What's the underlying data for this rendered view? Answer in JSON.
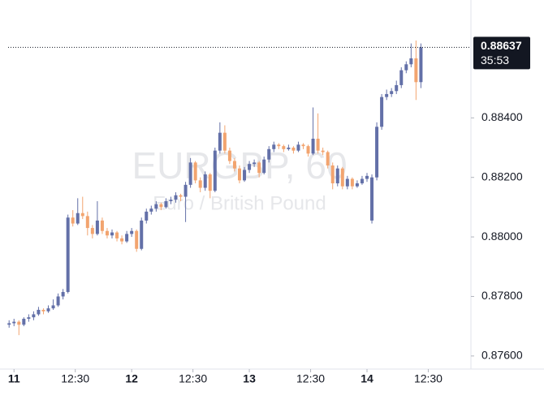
{
  "chart_data": {
    "type": "candlestick",
    "watermark": "EURGBP, 60",
    "subtitle": "Euro / British Pound",
    "up_color": "#6370a8",
    "down_color": "#f2a46f",
    "current_price": 0.88637,
    "countdown": "35:53",
    "xlim": [
      -1.2,
      93.2
    ],
    "xticks": [
      {
        "value": 0,
        "label": "11"
      },
      {
        "value": 12.5,
        "label": "12:30"
      },
      {
        "value": 24,
        "label": "12"
      },
      {
        "value": 36.5,
        "label": "12:30"
      },
      {
        "value": 48,
        "label": "13"
      },
      {
        "value": 60.5,
        "label": "12:30"
      },
      {
        "value": 72,
        "label": "14"
      },
      {
        "value": 84.5,
        "label": "12:30"
      }
    ],
    "ylim": [
      0.87556,
      0.88796
    ],
    "yticks": [
      {
        "value": 0.876,
        "label": "0.87600"
      },
      {
        "value": 0.878,
        "label": "0.87800"
      },
      {
        "value": 0.88,
        "label": "0.88000"
      },
      {
        "value": 0.882,
        "label": "0.88200"
      },
      {
        "value": 0.884,
        "label": "0.88400"
      }
    ],
    "x": [
      -1,
      0,
      1,
      2,
      3,
      4,
      5,
      6,
      7,
      8,
      9,
      10,
      11,
      12,
      13,
      14,
      15,
      16,
      17,
      18,
      19,
      20,
      21,
      22,
      23,
      24,
      25,
      26,
      27,
      28,
      29,
      30,
      31,
      32,
      33,
      34,
      35,
      36,
      37,
      38,
      39,
      40,
      41,
      42,
      43,
      44,
      45,
      46,
      47,
      48,
      49,
      50,
      51,
      52,
      53,
      54,
      55,
      56,
      57,
      58,
      59,
      60,
      61,
      62,
      63,
      64,
      65,
      66,
      67,
      68,
      69,
      70,
      71,
      72,
      73,
      74,
      75,
      76,
      77,
      78,
      79,
      80,
      81,
      82,
      83
    ],
    "ohlc": [
      [
        0.87705,
        0.8772,
        0.87695,
        0.8771
      ],
      [
        0.8771,
        0.87725,
        0.877,
        0.87715
      ],
      [
        0.87715,
        0.8772,
        0.8767,
        0.87705
      ],
      [
        0.87705,
        0.8773,
        0.877,
        0.87725
      ],
      [
        0.87725,
        0.8774,
        0.87715,
        0.8773
      ],
      [
        0.8773,
        0.8775,
        0.8772,
        0.8774
      ],
      [
        0.8774,
        0.87765,
        0.87735,
        0.87755
      ],
      [
        0.87755,
        0.8776,
        0.8774,
        0.8775
      ],
      [
        0.8775,
        0.8777,
        0.87745,
        0.8776
      ],
      [
        0.8776,
        0.8779,
        0.87755,
        0.8777
      ],
      [
        0.8777,
        0.8781,
        0.87765,
        0.878
      ],
      [
        0.878,
        0.87825,
        0.8779,
        0.87815
      ],
      [
        0.87815,
        0.88075,
        0.8781,
        0.88065
      ],
      [
        0.88065,
        0.8809,
        0.88035,
        0.88045
      ],
      [
        0.88045,
        0.8813,
        0.8804,
        0.8808
      ],
      [
        0.8808,
        0.88135,
        0.8806,
        0.8807
      ],
      [
        0.8807,
        0.88085,
        0.88005,
        0.8803
      ],
      [
        0.8803,
        0.8804,
        0.87995,
        0.8801
      ],
      [
        0.8801,
        0.8812,
        0.88005,
        0.88055
      ],
      [
        0.88055,
        0.88065,
        0.8801,
        0.8802
      ],
      [
        0.8802,
        0.8803,
        0.87995,
        0.88005
      ],
      [
        0.88005,
        0.88025,
        0.87995,
        0.88015
      ],
      [
        0.88015,
        0.8802,
        0.87985,
        0.87995
      ],
      [
        0.87995,
        0.88005,
        0.87975,
        0.87985
      ],
      [
        0.87985,
        0.8802,
        0.8798,
        0.8801
      ],
      [
        0.8801,
        0.8803,
        0.88,
        0.8802
      ],
      [
        0.8802,
        0.88025,
        0.8795,
        0.8796
      ],
      [
        0.8796,
        0.88065,
        0.87955,
        0.88055
      ],
      [
        0.88055,
        0.88095,
        0.88045,
        0.88085
      ],
      [
        0.88085,
        0.88105,
        0.88075,
        0.88095
      ],
      [
        0.88095,
        0.8812,
        0.88085,
        0.8811
      ],
      [
        0.8811,
        0.88115,
        0.8809,
        0.881
      ],
      [
        0.881,
        0.8813,
        0.88095,
        0.8812
      ],
      [
        0.8812,
        0.88135,
        0.8811,
        0.88125
      ],
      [
        0.88125,
        0.8815,
        0.88115,
        0.8814
      ],
      [
        0.8814,
        0.88145,
        0.8812,
        0.88135
      ],
      [
        0.88135,
        0.88185,
        0.8805,
        0.88175
      ],
      [
        0.88175,
        0.88265,
        0.88165,
        0.8825
      ],
      [
        0.8825,
        0.88255,
        0.8818,
        0.8819
      ],
      [
        0.8819,
        0.882,
        0.8815,
        0.88165
      ],
      [
        0.88165,
        0.8822,
        0.88155,
        0.8821
      ],
      [
        0.8821,
        0.88215,
        0.8813,
        0.88155
      ],
      [
        0.88155,
        0.883,
        0.8815,
        0.8829
      ],
      [
        0.8829,
        0.88385,
        0.8828,
        0.8835
      ],
      [
        0.8835,
        0.88375,
        0.8828,
        0.8829
      ],
      [
        0.8829,
        0.883,
        0.88245,
        0.88255
      ],
      [
        0.88255,
        0.88265,
        0.8822,
        0.8823
      ],
      [
        0.8823,
        0.8824,
        0.8818,
        0.8819
      ],
      [
        0.8819,
        0.88235,
        0.88185,
        0.88225
      ],
      [
        0.88225,
        0.88255,
        0.88215,
        0.88245
      ],
      [
        0.88245,
        0.8826,
        0.88235,
        0.8825
      ],
      [
        0.8825,
        0.88255,
        0.882,
        0.88215
      ],
      [
        0.88215,
        0.8827,
        0.8821,
        0.8826
      ],
      [
        0.8826,
        0.88305,
        0.8825,
        0.88295
      ],
      [
        0.88295,
        0.8832,
        0.88285,
        0.8831
      ],
      [
        0.8831,
        0.88315,
        0.88295,
        0.88305
      ],
      [
        0.88305,
        0.8831,
        0.88285,
        0.88295
      ],
      [
        0.88295,
        0.8831,
        0.8829,
        0.883
      ],
      [
        0.883,
        0.88305,
        0.8828,
        0.8829
      ],
      [
        0.8829,
        0.8832,
        0.88285,
        0.8831
      ],
      [
        0.8831,
        0.88315,
        0.88295,
        0.88305
      ],
      [
        0.88305,
        0.8831,
        0.8827,
        0.8828
      ],
      [
        0.8828,
        0.88435,
        0.88275,
        0.8833
      ],
      [
        0.8833,
        0.88415,
        0.8828,
        0.8829
      ],
      [
        0.8829,
        0.883,
        0.88275,
        0.88285
      ],
      [
        0.88285,
        0.8829,
        0.8823,
        0.8824
      ],
      [
        0.8824,
        0.8825,
        0.8816,
        0.8818
      ],
      [
        0.8818,
        0.8824,
        0.8817,
        0.8823
      ],
      [
        0.8823,
        0.88235,
        0.8816,
        0.8817
      ],
      [
        0.8817,
        0.88205,
        0.8816,
        0.88195
      ],
      [
        0.88195,
        0.882,
        0.8816,
        0.8817
      ],
      [
        0.8817,
        0.8819,
        0.88165,
        0.8818
      ],
      [
        0.8818,
        0.88205,
        0.88175,
        0.88195
      ],
      [
        0.88195,
        0.88215,
        0.88185,
        0.88205
      ],
      [
        0.88055,
        0.8821,
        0.88045,
        0.882
      ],
      [
        0.882,
        0.88385,
        0.8819,
        0.8837
      ],
      [
        0.8837,
        0.8848,
        0.8836,
        0.8847
      ],
      [
        0.8847,
        0.88495,
        0.8846,
        0.8848
      ],
      [
        0.8848,
        0.885,
        0.8847,
        0.8849
      ],
      [
        0.8849,
        0.88525,
        0.8848,
        0.8851
      ],
      [
        0.8851,
        0.8857,
        0.885,
        0.8856
      ],
      [
        0.8856,
        0.8859,
        0.8855,
        0.8858
      ],
      [
        0.8858,
        0.8865,
        0.8857,
        0.886
      ],
      [
        0.886,
        0.8866,
        0.8846,
        0.8852
      ],
      [
        0.8852,
        0.8865,
        0.885,
        0.88637
      ]
    ]
  }
}
